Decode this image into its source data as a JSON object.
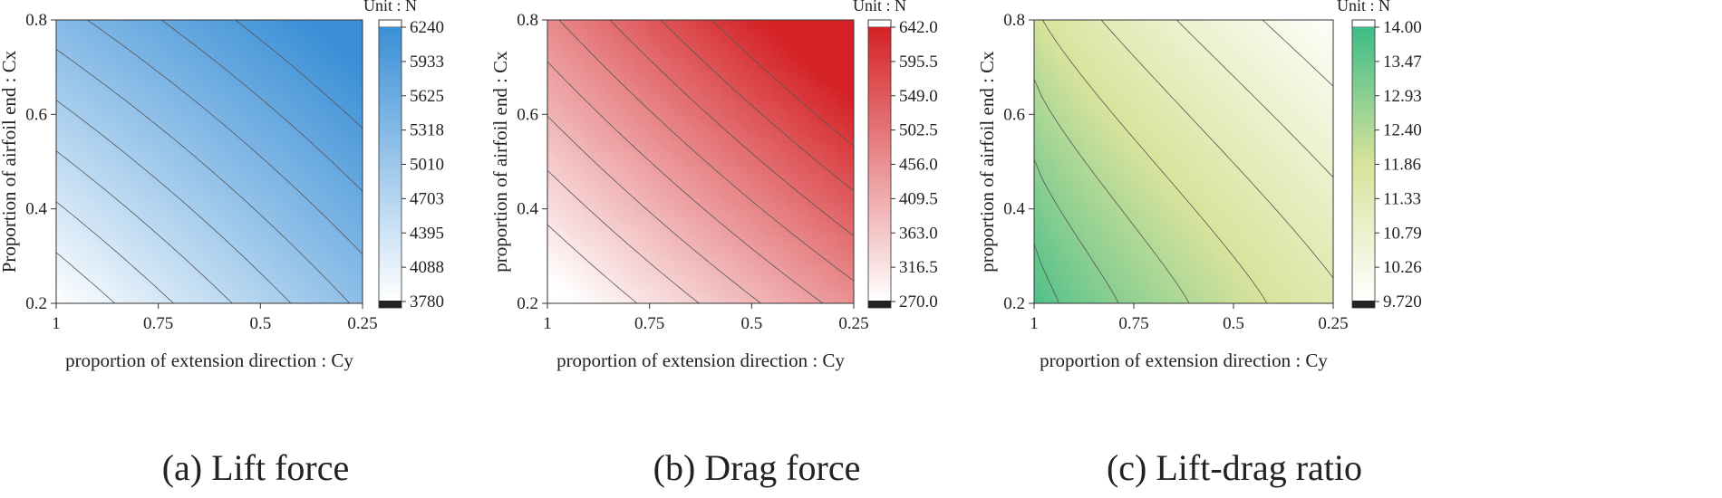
{
  "chart_data": [
    {
      "type": "heatmap",
      "title": "(a) Lift force",
      "xlabel": "proportion of extension direction :  Cy",
      "ylabel": "Proportion of airfoil end :  Cx",
      "x_ticks": [
        "1",
        "0.75",
        "0.5",
        "0.25"
      ],
      "y_ticks": [
        "0.2",
        "0.4",
        "0.6",
        "0.8"
      ],
      "xlim": [
        1,
        0.25
      ],
      "ylim": [
        0.2,
        0.8
      ],
      "unit": "Unit : N",
      "colorbar_ticks": [
        "6240",
        "5933",
        "5625",
        "5318",
        "5010",
        "4703",
        "4395",
        "4088",
        "3780"
      ],
      "range": [
        3780,
        6240
      ],
      "colors": {
        "low": "#ffffff",
        "high": "#3a8fd6"
      },
      "contour_levels": 8
    },
    {
      "type": "heatmap",
      "title": "(b) Drag force",
      "xlabel": "proportion of extension direction :  Cy",
      "ylabel": "proportion of airfoil end :  Cx",
      "x_ticks": [
        "1",
        "0.75",
        "0.5",
        "0.25"
      ],
      "y_ticks": [
        "0.2",
        "0.4",
        "0.6",
        "0.8"
      ],
      "xlim": [
        1,
        0.25
      ],
      "ylim": [
        0.2,
        0.8
      ],
      "unit": "Unit : N",
      "colorbar_ticks": [
        "642.0",
        "595.5",
        "549.0",
        "502.5",
        "456.0",
        "409.5",
        "363.0",
        "316.5",
        "270.0"
      ],
      "range": [
        270.0,
        642.0
      ],
      "colors": {
        "low": "#ffffff",
        "high": "#d42226"
      },
      "contour_levels": 8
    },
    {
      "type": "heatmap",
      "title": "(c) Lift-drag ratio",
      "xlabel": "proportion of extension direction :  Cy",
      "ylabel": "proportion of airfoil end :  Cx",
      "x_ticks": [
        "1",
        "0.75",
        "0.5",
        "0.25"
      ],
      "y_ticks": [
        "0.2",
        "0.4",
        "0.6",
        "0.8"
      ],
      "xlim": [
        1,
        0.25
      ],
      "ylim": [
        0.2,
        0.8
      ],
      "unit": "Unit : N",
      "colorbar_ticks": [
        "14.00",
        "13.47",
        "12.93",
        "12.40",
        "11.86",
        "11.33",
        "10.79",
        "10.26",
        "9.720"
      ],
      "range": [
        9.72,
        14.0
      ],
      "colors": {
        "low": "#ffffff",
        "mid": "#d9e39c",
        "high": "#3dbb86"
      },
      "contour_levels": 7
    }
  ]
}
